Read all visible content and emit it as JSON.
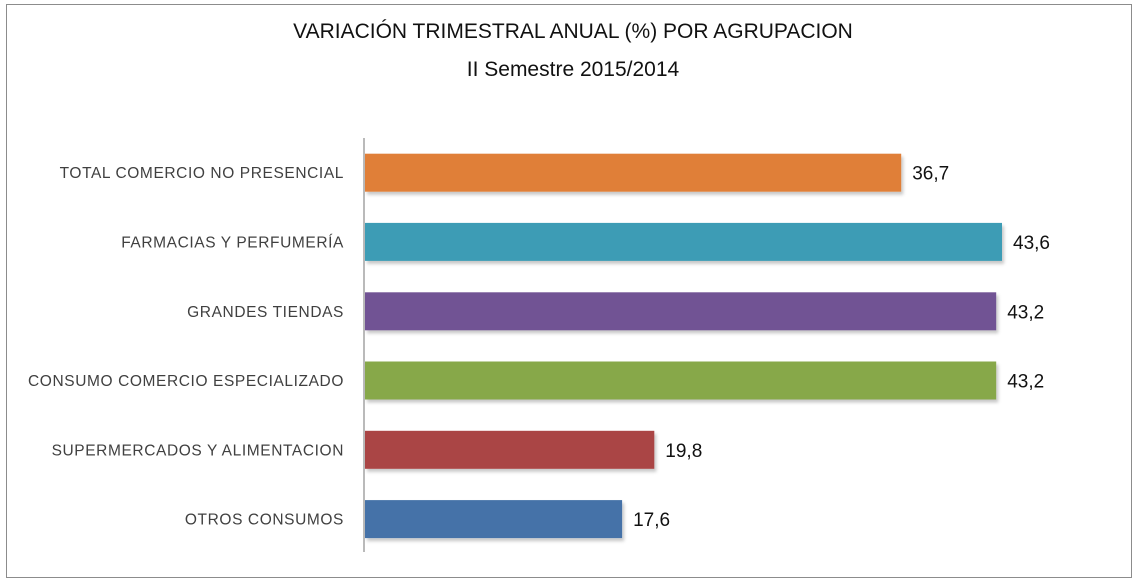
{
  "chart_data": {
    "type": "bar",
    "orientation": "horizontal",
    "title": "VARIACIÓN TRIMESTRAL ANUAL (%) POR AGRUPACION",
    "subtitle": "II Semestre 2015/2014",
    "categories": [
      "TOTAL COMERCIO NO PRESENCIAL",
      "FARMACIAS Y PERFUMERÍA",
      "GRANDES TIENDAS",
      "CONSUMO COMERCIO ESPECIALIZADO",
      "SUPERMERCADOS  Y ALIMENTACION",
      "OTROS CONSUMOS"
    ],
    "values": [
      36.7,
      43.6,
      43.2,
      43.2,
      19.8,
      17.6
    ],
    "value_labels": [
      "36,7",
      "43,6",
      "43,2",
      "43,2",
      "19,8",
      "17,6"
    ],
    "colors": [
      "#e07f37",
      "#3e9cb5",
      "#715394",
      "#87a84a",
      "#aa4444",
      "#4572a8"
    ],
    "xlim": [
      0,
      43.6
    ],
    "grid": false,
    "legend": "none"
  }
}
